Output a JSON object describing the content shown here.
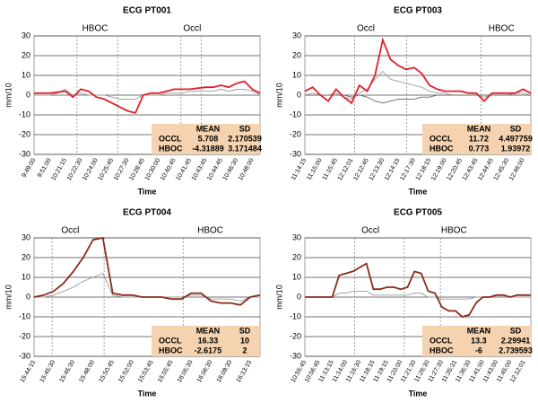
{
  "chart_data": [
    {
      "type": "line",
      "title": "ECG PT001",
      "ylabel": "mm/10",
      "xlabel": "Time",
      "grid": true,
      "ylim": [
        -30,
        30
      ],
      "yticks": [
        -30,
        -20,
        -10,
        0,
        10,
        20,
        30
      ],
      "annotations": [
        "HBOC",
        "Occl"
      ],
      "categories": [
        "9:49:00",
        null,
        "9:51:00",
        null,
        "10:21:15",
        null,
        "10:22:30",
        null,
        "10:24:00",
        null,
        "10:25:45",
        null,
        "10:27:30",
        null,
        "10:28:45",
        null,
        "10:30:00",
        null,
        "10:40:45",
        null,
        "10:41:45",
        null,
        "10:43:45",
        null,
        "10:44:45",
        null,
        "10:46:30",
        null,
        "10:48:00",
        null
      ],
      "series": [
        {
          "color": "#999999",
          "values": [
            0,
            0,
            0,
            1,
            3,
            0,
            1,
            0,
            0,
            0,
            -1,
            -2,
            -2,
            -2,
            0,
            0,
            0,
            1,
            1,
            1,
            2,
            2,
            2,
            2,
            3,
            2,
            3,
            3,
            2,
            0
          ]
        },
        {
          "color": "#e0202a",
          "values": [
            1,
            1,
            1,
            1.5,
            2,
            -1,
            3,
            2,
            -1,
            -2,
            -4,
            -6,
            -8,
            -9,
            0,
            1,
            1,
            2,
            3,
            3,
            3,
            3.5,
            4,
            4,
            5,
            4,
            6,
            7,
            3,
            1
          ]
        }
      ],
      "table": {
        "header": [
          "MEAN",
          "SD"
        ],
        "rows": [
          [
            "OCCL",
            5.708,
            2.170539
          ],
          [
            "HBOC",
            -4.31889,
            3.171484
          ]
        ]
      }
    },
    {
      "type": "line",
      "title": "ECG PT003",
      "ylabel": "mm/10",
      "xlabel": "Time",
      "grid": true,
      "ylim": [
        -30,
        30
      ],
      "yticks": [
        -30,
        -20,
        -10,
        0,
        10,
        20,
        30
      ],
      "annotations": [
        "Occl",
        "HBOC"
      ],
      "categories": [
        "11:14:15",
        null,
        "11:15:00",
        null,
        "11:15:45",
        null,
        "12:12:01",
        null,
        "12:12:45",
        null,
        "12:13:30",
        null,
        "12:14:15",
        null,
        "12:17:30",
        null,
        "12:18:15",
        null,
        "12:19:00",
        null,
        "12:20:45",
        null,
        "12:43:45",
        null,
        "12:44:45",
        null,
        "12:45:30",
        null,
        "12:46:00",
        null
      ],
      "series": [
        {
          "color": "#999999",
          "values": [
            0,
            1,
            0,
            0,
            1,
            -1,
            -2,
            1,
            3,
            8,
            12,
            8,
            7,
            6,
            5,
            4,
            2,
            1,
            1,
            0,
            0,
            0,
            0,
            -1,
            0,
            0,
            0,
            1,
            1,
            0
          ]
        },
        {
          "color": "#666666",
          "values": [
            0,
            0,
            0,
            0,
            0,
            0,
            -1,
            0,
            -1,
            -3,
            -4,
            -3,
            -2,
            -2,
            -2,
            -1,
            -1,
            0,
            0,
            0,
            0,
            0,
            0,
            0,
            0,
            0,
            0,
            0,
            0,
            0
          ]
        },
        {
          "color": "#e0202a",
          "values": [
            2,
            4,
            0,
            -3,
            3,
            -1,
            -4,
            5,
            2,
            10,
            28,
            18,
            15,
            13,
            14,
            11,
            5,
            3,
            2,
            2,
            2,
            1,
            1,
            -3,
            1,
            1,
            1,
            1,
            3,
            1
          ]
        }
      ],
      "table": {
        "header": [
          "MEAN",
          "SD"
        ],
        "rows": [
          [
            "OCCL",
            11.72,
            4.497759
          ],
          [
            "HBOC",
            0.773,
            1.93972
          ]
        ]
      }
    },
    {
      "type": "line",
      "title": "ECG PT004",
      "ylabel": "mm/10",
      "xlabel": "Time",
      "grid": true,
      "ylim": [
        -30,
        30
      ],
      "yticks": [
        -30,
        -20,
        -10,
        0,
        10,
        20,
        30
      ],
      "annotations": [
        "Occl",
        "HBOC"
      ],
      "categories": [
        "15:44:15",
        null,
        "15:45:30",
        null,
        "15:46:30",
        null,
        "15:48:00",
        null,
        "15:50:45",
        null,
        "15:52:00",
        null,
        "15:53:45",
        null,
        "15:55:45",
        null,
        "16:05:30",
        null,
        "16:06:30",
        null,
        "16:09:30",
        null,
        "16:13:15",
        null
      ],
      "series": [
        {
          "color": "#999999",
          "values": [
            0,
            0,
            1,
            3,
            5,
            8,
            10,
            12,
            1,
            0,
            0,
            0,
            0,
            0,
            0,
            0,
            1,
            1,
            -1,
            -1,
            -1,
            -2,
            0,
            0
          ]
        },
        {
          "color": "#8b2a1a",
          "values": [
            0,
            1,
            3,
            7,
            13,
            20,
            29,
            30,
            2,
            1,
            1,
            0,
            0,
            0,
            -1,
            -1,
            2,
            2,
            -2,
            -3,
            -3,
            -4,
            0,
            1
          ]
        }
      ],
      "table": {
        "header": [
          "MEAN",
          "SD"
        ],
        "rows": [
          [
            "OCCL",
            16.33,
            10
          ],
          [
            "HBOC",
            -2.6175,
            2
          ]
        ]
      }
    },
    {
      "type": "line",
      "title": "ECG PT005",
      "ylabel": "mm/10",
      "xlabel": "Time",
      "grid": true,
      "ylim": [
        -30,
        30
      ],
      "yticks": [
        -30,
        -20,
        -10,
        0,
        10,
        20,
        30
      ],
      "annotations": [
        "Occl",
        "HBOC"
      ],
      "categories": [
        "10:55:45",
        null,
        "10:56:45",
        null,
        "11:13:15",
        null,
        "11:14:00",
        null,
        "11:16:30",
        null,
        "11:18:15",
        null,
        "11:19:15",
        null,
        "11:20:00",
        null,
        "11:21:30",
        null,
        "11:26:30",
        null,
        "11:27:30",
        null,
        "11:35:31",
        null,
        "11:36:30",
        null,
        "11:41:00",
        null,
        "11:43:00",
        null,
        "11:45:00",
        null,
        "12:12:01",
        null
      ],
      "series": [
        {
          "color": "#999999",
          "values": [
            0,
            0,
            0,
            0,
            0,
            2,
            2,
            3,
            3,
            3,
            1,
            1,
            1,
            1,
            1,
            1,
            2,
            2,
            0,
            0,
            -1,
            -1,
            -1,
            -1,
            -1,
            0,
            0,
            0,
            1,
            1,
            0,
            0,
            0,
            0
          ]
        },
        {
          "color": "#8b2a1a",
          "values": [
            0,
            0,
            0,
            0,
            0,
            11,
            12,
            13,
            15,
            17,
            4,
            4,
            5,
            5,
            4,
            5,
            13,
            12,
            3,
            2,
            -5,
            -7,
            -7,
            -10,
            -9,
            -3,
            0,
            0,
            1,
            1,
            0,
            1,
            1,
            1
          ]
        }
      ],
      "table": {
        "header": [
          "MEAN",
          "SD"
        ],
        "rows": [
          [
            "OCCL",
            13.3,
            2.29941
          ],
          [
            "HBOC",
            -6,
            2.739593
          ]
        ]
      }
    }
  ]
}
